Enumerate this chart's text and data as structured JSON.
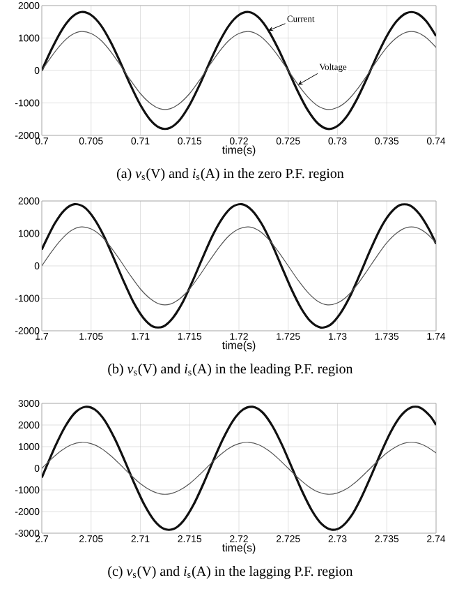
{
  "chart_data": [
    {
      "type": "line",
      "title": "(a) *v*$_{s}$(V) and *i*$_{s}$(A) in the zero P.F. region",
      "xlabel": "time(s)",
      "x": [
        0.7,
        0.701,
        0.702,
        0.703,
        0.704,
        0.705,
        0.706,
        0.707,
        0.708,
        0.709,
        0.71,
        0.711,
        0.712,
        0.713,
        0.714,
        0.715,
        0.716,
        0.717,
        0.718,
        0.719,
        0.72,
        0.721,
        0.722,
        0.723,
        0.724,
        0.725,
        0.726,
        0.727,
        0.728,
        0.729,
        0.73,
        0.731,
        0.732,
        0.733,
        0.734,
        0.735,
        0.736,
        0.737,
        0.738,
        0.739,
        0.74
      ],
      "series": [
        {
          "name": "Current",
          "color": "#111111",
          "values": [
            0,
            660,
            1230,
            1630,
            1800,
            1710,
            1390,
            870,
            230,
            -450,
            -1060,
            -1520,
            -1770,
            -1770,
            -1520,
            -1060,
            -450,
            230,
            870,
            1390,
            1710,
            1800,
            1630,
            1230,
            660,
            0,
            -660,
            -1230,
            -1630,
            -1800,
            -1710,
            -1390,
            -870,
            -230,
            450,
            1060,
            1520,
            1770,
            1770,
            1520,
            1060
          ]
        },
        {
          "name": "Voltage",
          "color": "#555555",
          "values": [
            0,
            440,
            820,
            1090,
            1200,
            1140,
            930,
            580,
            150,
            -300,
            -710,
            -1010,
            -1180,
            -1180,
            -1010,
            -710,
            -300,
            150,
            580,
            930,
            1140,
            1200,
            1090,
            820,
            440,
            0,
            -440,
            -820,
            -1090,
            -1200,
            -1140,
            -930,
            -580,
            -150,
            300,
            710,
            1010,
            1180,
            1180,
            1010,
            710
          ]
        }
      ],
      "xlim": [
        0.7,
        0.74
      ],
      "ylim": [
        -2000,
        2000
      ],
      "xticks": [
        0.7,
        0.705,
        0.71,
        0.715,
        0.72,
        0.725,
        0.73,
        0.735,
        0.74
      ],
      "yticks": [
        -2000,
        -1000,
        0,
        1000,
        2000
      ],
      "grid": true
    },
    {
      "type": "line",
      "title": "(b) *v*$_{s}$(V) and *i*$_{s}$(A) in the leading P.F. region",
      "xlabel": "time(s)",
      "x": [
        1.7,
        1.701,
        1.702,
        1.703,
        1.704,
        1.705,
        1.706,
        1.707,
        1.708,
        1.709,
        1.71,
        1.711,
        1.712,
        1.713,
        1.714,
        1.715,
        1.716,
        1.717,
        1.718,
        1.719,
        1.72,
        1.721,
        1.722,
        1.723,
        1.724,
        1.725,
        1.726,
        1.727,
        1.728,
        1.729,
        1.73,
        1.731,
        1.732,
        1.733,
        1.734,
        1.735,
        1.736,
        1.737,
        1.738,
        1.739,
        1.74
      ],
      "series": [
        {
          "color": "#111111",
          "x": [
            1.7,
            1.7003,
            1.7013,
            1.7023,
            1.7033,
            1.7043,
            1.7053,
            1.7063,
            1.7073,
            1.7083,
            1.7093,
            1.7103,
            1.7113,
            1.7123,
            1.7133,
            1.7143,
            1.7153,
            1.7163,
            1.7173,
            1.7183,
            1.7193,
            1.7203,
            1.7213,
            1.7223,
            1.7233,
            1.7243,
            1.7253,
            1.7263,
            1.7273,
            1.7283,
            1.7293,
            1.7303,
            1.7313,
            1.7323,
            1.7333,
            1.7343,
            1.7353,
            1.7363,
            1.7373,
            1.7383,
            1.7393,
            1.74
          ],
          "values": [
            500,
            700,
            1300,
            1720,
            1900,
            1810,
            1460,
            920,
            240,
            -470,
            -1120,
            -1600,
            -1870,
            -1870,
            -1600,
            -1120,
            -470,
            240,
            920,
            1460,
            1810,
            1900,
            1720,
            1300,
            700,
            0,
            -700,
            -1300,
            -1720,
            -1900,
            -1810,
            -1460,
            -920,
            -240,
            470,
            1120,
            1600,
            1870,
            1870,
            1600,
            1120,
            680
          ]
        },
        {
          "color": "#555555",
          "values": [
            0,
            440,
            820,
            1090,
            1200,
            1140,
            930,
            580,
            150,
            -300,
            -710,
            -1010,
            -1180,
            -1180,
            -1010,
            -710,
            -300,
            150,
            580,
            930,
            1140,
            1200,
            1090,
            820,
            440,
            0,
            -440,
            -820,
            -1090,
            -1200,
            -1140,
            -930,
            -580,
            -150,
            300,
            710,
            1010,
            1180,
            1180,
            1010,
            710
          ]
        }
      ],
      "xlim": [
        1.7,
        1.74
      ],
      "ylim": [
        -2000,
        2000
      ],
      "xticks": [
        1.7,
        1.705,
        1.71,
        1.715,
        1.72,
        1.725,
        1.73,
        1.735,
        1.74
      ],
      "yticks": [
        -2000,
        -1000,
        0,
        1000,
        2000
      ],
      "grid": true
    },
    {
      "type": "line",
      "title": "(c) *v*$_{s}$(V) and *i*$_{s}$(A) in the lagging P.F. region",
      "xlabel": "time(s)",
      "x": [
        2.7,
        2.701,
        2.702,
        2.703,
        2.704,
        2.705,
        2.706,
        2.707,
        2.708,
        2.709,
        2.71,
        2.711,
        2.712,
        2.713,
        2.714,
        2.715,
        2.716,
        2.717,
        2.718,
        2.719,
        2.72,
        2.721,
        2.722,
        2.723,
        2.724,
        2.725,
        2.726,
        2.727,
        2.728,
        2.729,
        2.73,
        2.731,
        2.732,
        2.733,
        2.734,
        2.735,
        2.736,
        2.737,
        2.738,
        2.739,
        2.74
      ],
      "series": [
        {
          "color": "#111111",
          "x": [
            2.7,
            2.7004,
            2.7014,
            2.7024,
            2.7034,
            2.7044,
            2.7054,
            2.7064,
            2.7074,
            2.7084,
            2.7094,
            2.7104,
            2.7114,
            2.7124,
            2.7134,
            2.7144,
            2.7154,
            2.7164,
            2.7174,
            2.7184,
            2.7194,
            2.7204,
            2.7214,
            2.7224,
            2.7234,
            2.7244,
            2.7254,
            2.7264,
            2.7274,
            2.7284,
            2.7294,
            2.7304,
            2.7314,
            2.7324,
            2.7334,
            2.7344,
            2.7354,
            2.7364,
            2.7374,
            2.7384,
            2.7394,
            2.74
          ],
          "values": [
            -430,
            0,
            1050,
            1950,
            2580,
            2840,
            2710,
            2200,
            1370,
            360,
            -710,
            -1680,
            -2410,
            -2800,
            -2800,
            -2410,
            -1680,
            -710,
            360,
            1370,
            2200,
            2710,
            2840,
            2580,
            1950,
            1050,
            0,
            -1050,
            -1950,
            -2580,
            -2840,
            -2710,
            -2200,
            -1370,
            -360,
            710,
            1680,
            2410,
            2800,
            2800,
            2410,
            2000
          ]
        },
        {
          "color": "#555555",
          "values": [
            0,
            440,
            820,
            1090,
            1200,
            1140,
            930,
            580,
            150,
            -300,
            -710,
            -1010,
            -1180,
            -1180,
            -1010,
            -710,
            -300,
            150,
            580,
            930,
            1140,
            1200,
            1090,
            820,
            440,
            0,
            -440,
            -820,
            -1090,
            -1200,
            -1140,
            -930,
            -580,
            -150,
            300,
            710,
            1010,
            1180,
            1180,
            1010,
            710
          ]
        }
      ],
      "xlim": [
        2.7,
        2.74
      ],
      "ylim": [
        -3000,
        3000
      ],
      "xticks": [
        2.7,
        2.705,
        2.71,
        2.715,
        2.72,
        2.725,
        2.73,
        2.735,
        2.74
      ],
      "yticks": [
        -3000,
        -2000,
        -1000,
        0,
        1000,
        2000,
        3000
      ],
      "grid": true
    }
  ]
}
